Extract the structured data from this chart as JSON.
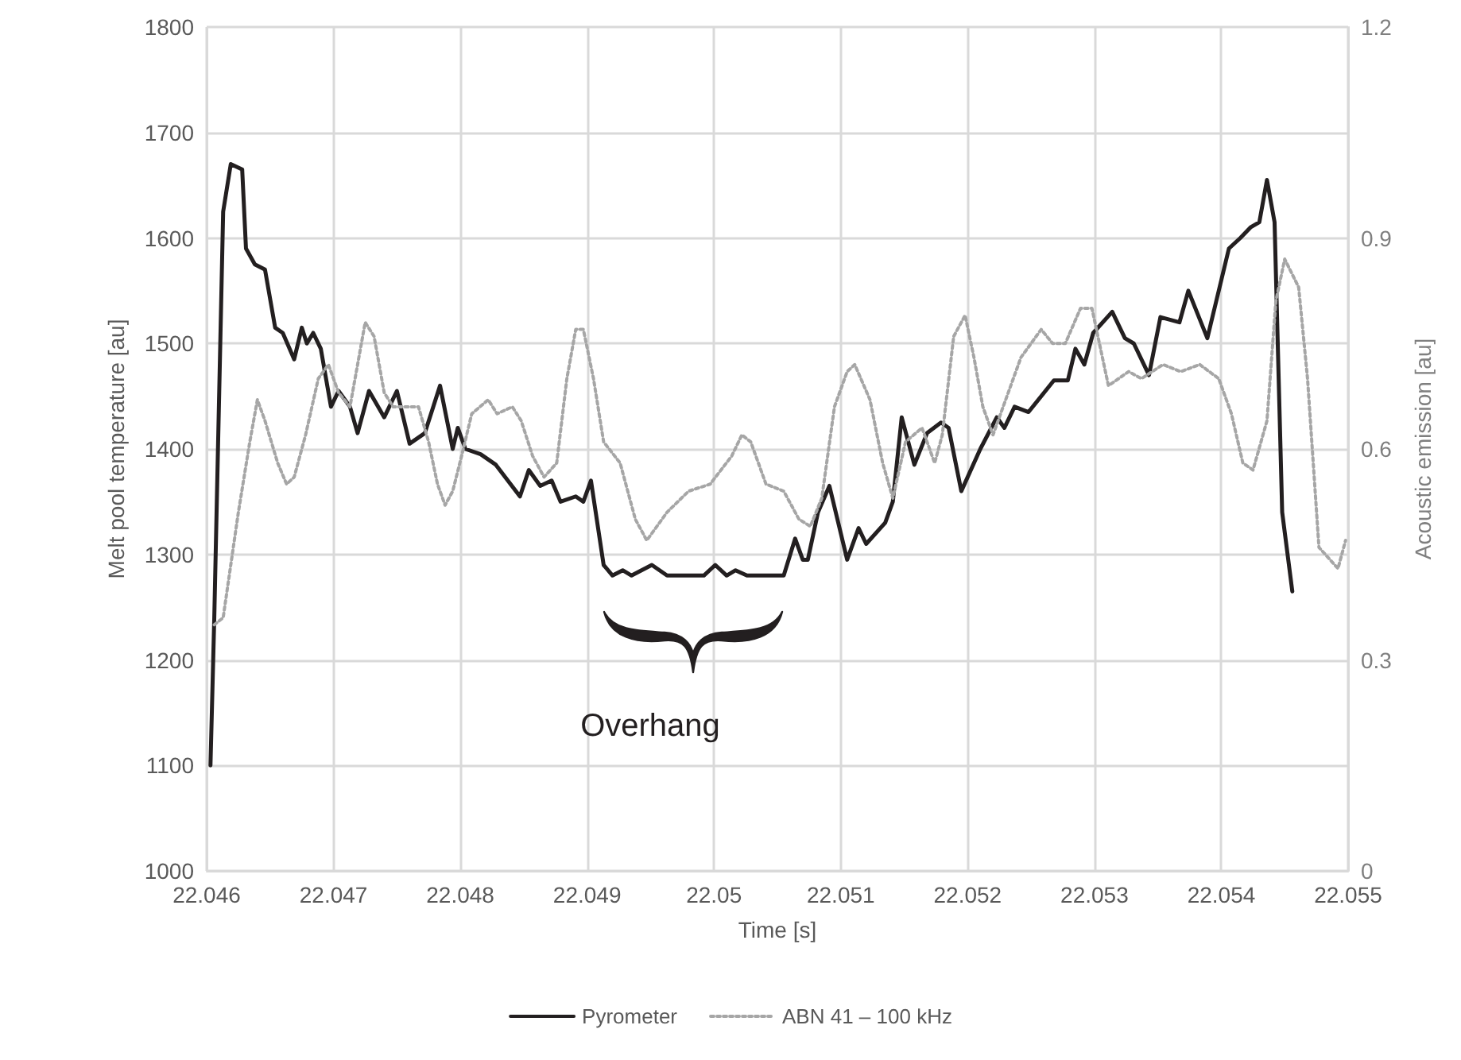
{
  "chart_data": {
    "type": "line",
    "xlabel": "Time [s]",
    "ylabel": "Melt pool temperature [au]",
    "y2label": "Acoustic emission [au]",
    "xlim": [
      22.046,
      22.055
    ],
    "xticks": [
      22.046,
      22.047,
      22.048,
      22.049,
      22.05,
      22.051,
      22.052,
      22.053,
      22.054,
      22.055
    ],
    "ylim": [
      1000,
      1800
    ],
    "yticks": [
      1000,
      1100,
      1200,
      1300,
      1400,
      1500,
      1600,
      1700,
      1800
    ],
    "y2lim": [
      0,
      1.2
    ],
    "y2ticks": [
      0,
      0.3,
      0.6,
      0.9,
      1.2
    ],
    "grid": true,
    "legend": "bottom",
    "marker": "none",
    "annotations": [
      "Overhang"
    ],
    "series": [
      {
        "name": "Pyrometer",
        "color": "#231f20",
        "line_style": "solid",
        "x": [
          22.04603,
          22.04606,
          22.04613,
          22.04619,
          22.04628,
          22.04631,
          22.04638,
          22.04646,
          22.04654,
          22.0466,
          22.04669,
          22.04675,
          22.04679,
          22.04684,
          22.0469,
          22.04698,
          22.04704,
          22.04713,
          22.04719,
          22.04728,
          22.0474,
          22.0475,
          22.0476,
          22.04772,
          22.04784,
          22.04794,
          22.04798,
          22.04804,
          22.04816,
          22.04828,
          22.04847,
          22.04854,
          22.04863,
          22.04872,
          22.04879,
          22.04891,
          22.04897,
          22.04903,
          22.04913,
          22.0492,
          22.04928,
          22.04935,
          22.04951,
          22.04963,
          22.04992,
          22.05001,
          22.0501,
          22.05017,
          22.05026,
          22.05055,
          22.05064,
          22.0507,
          22.05074,
          22.05082,
          22.05091,
          22.05105,
          22.05114,
          22.0512,
          22.05135,
          22.05141,
          22.05148,
          22.05158,
          22.05168,
          22.05179,
          22.05185,
          22.05195,
          22.0521,
          22.05223,
          22.05229,
          22.05237,
          22.05248,
          22.05268,
          22.05279,
          22.05285,
          22.05292,
          22.05299,
          22.05314,
          22.05324,
          22.05331,
          22.05343,
          22.05352,
          22.05367,
          22.05374,
          22.05389,
          22.05406,
          22.05415,
          22.05423,
          22.0543,
          22.05436,
          22.05442,
          22.05448,
          22.05456
        ],
        "values": [
          1100,
          1240,
          1625,
          1670,
          1665,
          1590,
          1575,
          1570,
          1515,
          1510,
          1485,
          1515,
          1500,
          1510,
          1495,
          1440,
          1455,
          1440,
          1415,
          1455,
          1430,
          1455,
          1405,
          1415,
          1460,
          1400,
          1420,
          1400,
          1395,
          1385,
          1355,
          1380,
          1365,
          1370,
          1350,
          1355,
          1350,
          1370,
          1290,
          1280,
          1285,
          1280,
          1290,
          1280,
          1280,
          1290,
          1280,
          1285,
          1280,
          1280,
          1315,
          1295,
          1295,
          1340,
          1365,
          1295,
          1325,
          1310,
          1330,
          1350,
          1430,
          1385,
          1415,
          1425,
          1420,
          1360,
          1400,
          1430,
          1420,
          1440,
          1435,
          1465,
          1465,
          1495,
          1480,
          1510,
          1530,
          1505,
          1500,
          1470,
          1525,
          1520,
          1550,
          1505,
          1590,
          1600,
          1610,
          1615,
          1655,
          1615,
          1340,
          1265
        ]
      },
      {
        "name": "ABN 41 – 100 kHz",
        "color": "#a6a6a6",
        "line_style": "dotted",
        "axis": "y2",
        "x": [
          22.04606,
          22.04613,
          22.04625,
          22.04634,
          22.0464,
          22.04646,
          22.04656,
          22.04663,
          22.04669,
          22.04678,
          22.04688,
          22.04696,
          22.04704,
          22.04713,
          22.04719,
          22.04725,
          22.04732,
          22.0474,
          22.04747,
          22.04754,
          22.04767,
          22.04775,
          22.04782,
          22.04788,
          22.04794,
          22.04801,
          22.04809,
          22.04822,
          22.04829,
          22.04841,
          22.04848,
          22.04857,
          22.04866,
          22.04876,
          22.04884,
          22.04891,
          22.04897,
          22.04905,
          22.04913,
          22.04926,
          22.04938,
          22.04947,
          22.04963,
          22.0498,
          22.04997,
          22.05014,
          22.05022,
          22.05029,
          22.05041,
          22.05055,
          22.05067,
          22.05076,
          22.05085,
          22.05095,
          22.05105,
          22.05111,
          22.05123,
          22.05133,
          22.05141,
          22.05151,
          22.05164,
          22.05174,
          22.0518,
          22.05189,
          22.05198,
          22.05205,
          22.05212,
          22.0522,
          22.0523,
          22.05242,
          22.05258,
          22.05267,
          22.05277,
          22.05289,
          22.05298,
          22.05311,
          22.05327,
          22.05337,
          22.05354,
          22.05368,
          22.05383,
          22.05398,
          22.05408,
          22.05417,
          22.05425,
          22.05436,
          22.05443,
          22.0545,
          22.05461,
          22.05468,
          22.05477,
          22.05487,
          22.05492,
          22.05498
        ],
        "values": [
          0.35,
          0.36,
          0.51,
          0.61,
          0.67,
          0.64,
          0.58,
          0.55,
          0.56,
          0.62,
          0.7,
          0.72,
          0.68,
          0.66,
          0.72,
          0.78,
          0.76,
          0.68,
          0.66,
          0.66,
          0.66,
          0.61,
          0.55,
          0.52,
          0.54,
          0.59,
          0.65,
          0.67,
          0.65,
          0.66,
          0.64,
          0.59,
          0.56,
          0.58,
          0.7,
          0.77,
          0.77,
          0.7,
          0.61,
          0.58,
          0.5,
          0.47,
          0.51,
          0.54,
          0.55,
          0.59,
          0.62,
          0.61,
          0.55,
          0.54,
          0.5,
          0.49,
          0.53,
          0.66,
          0.71,
          0.72,
          0.67,
          0.58,
          0.53,
          0.61,
          0.63,
          0.58,
          0.62,
          0.76,
          0.79,
          0.73,
          0.66,
          0.62,
          0.67,
          0.73,
          0.77,
          0.75,
          0.75,
          0.8,
          0.8,
          0.69,
          0.71,
          0.7,
          0.72,
          0.71,
          0.72,
          0.7,
          0.65,
          0.58,
          0.57,
          0.64,
          0.81,
          0.87,
          0.83,
          0.7,
          0.46,
          0.44,
          0.43,
          0.47
        ]
      }
    ]
  }
}
